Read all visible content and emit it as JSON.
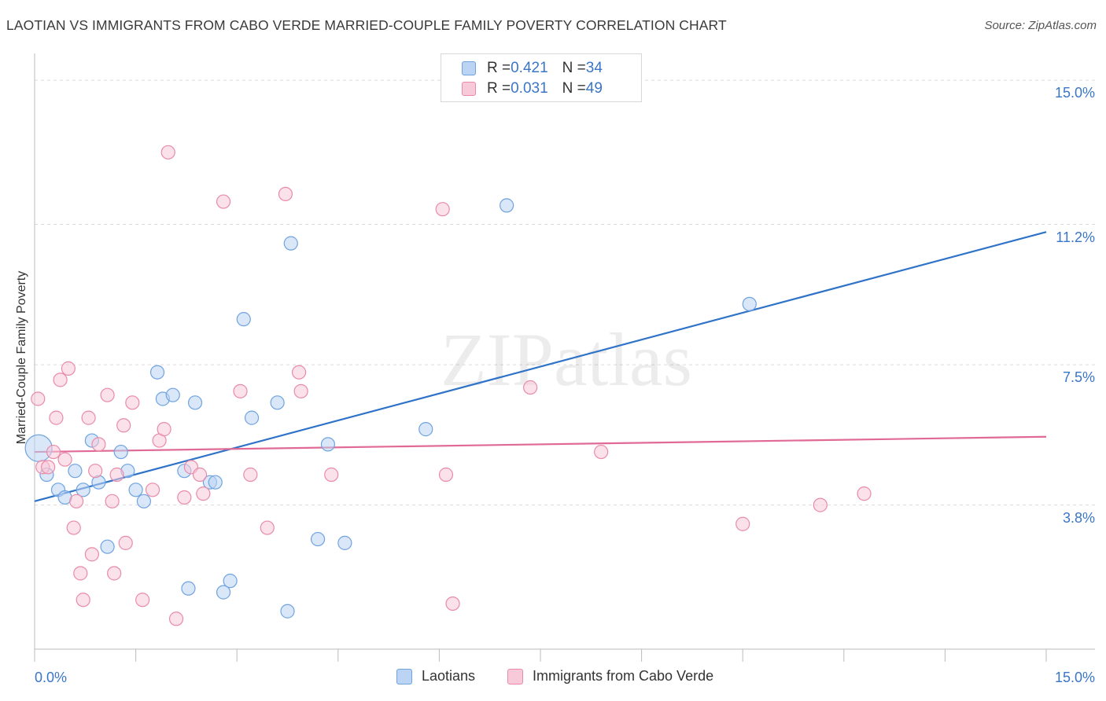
{
  "chart_data": {
    "type": "scatter",
    "title": "LAOTIAN VS IMMIGRANTS FROM CABO VERDE MARRIED-COUPLE FAMILY POVERTY CORRELATION CHART",
    "source": "Source: ZipAtlas.com",
    "xlabel": "",
    "ylabel": "Married-Couple Family Poverty",
    "xlim": [
      0,
      15
    ],
    "ylim": [
      0,
      15.5
    ],
    "x_tick_labels": [
      "0.0%",
      "15.0%"
    ],
    "y_ticks": [
      {
        "value": 3.8,
        "label": "3.8%"
      },
      {
        "value": 7.5,
        "label": "7.5%"
      },
      {
        "value": 11.2,
        "label": "11.2%"
      },
      {
        "value": 15.0,
        "label": "15.0%"
      }
    ],
    "watermark": "ZIPatlas",
    "legend": [
      {
        "name": "Laotians",
        "r_label": "R = ",
        "r": "0.421",
        "n_label": "N = ",
        "n": "34",
        "color": "#6fa3e0",
        "fill": "#bcd4f3"
      },
      {
        "name": "Immigrants from Cabo Verde",
        "r_label": "R = ",
        "r": "0.031",
        "n_label": "N = ",
        "n": "49",
        "color": "#e98ba8",
        "fill": "#f8c9d8"
      }
    ],
    "series": [
      {
        "name": "Laotians",
        "color": "#6fa3e0",
        "fill": "#bcd4f3",
        "trend": {
          "x0": 0,
          "y0": 3.9,
          "x1": 15,
          "y1": 11.0,
          "color": "#2f73c9"
        },
        "points": [
          {
            "x": 0.06,
            "y": 5.3,
            "big": true
          },
          {
            "x": 0.18,
            "y": 4.6
          },
          {
            "x": 0.35,
            "y": 4.2
          },
          {
            "x": 0.45,
            "y": 4.0
          },
          {
            "x": 0.6,
            "y": 4.7
          },
          {
            "x": 0.72,
            "y": 4.2
          },
          {
            "x": 0.85,
            "y": 5.5
          },
          {
            "x": 0.95,
            "y": 4.4
          },
          {
            "x": 1.08,
            "y": 2.7
          },
          {
            "x": 1.28,
            "y": 5.2
          },
          {
            "x": 1.38,
            "y": 4.7
          },
          {
            "x": 1.5,
            "y": 4.2
          },
          {
            "x": 1.62,
            "y": 3.9
          },
          {
            "x": 1.82,
            "y": 7.3
          },
          {
            "x": 1.9,
            "y": 6.6
          },
          {
            "x": 2.05,
            "y": 6.7
          },
          {
            "x": 2.22,
            "y": 4.7
          },
          {
            "x": 2.28,
            "y": 1.6
          },
          {
            "x": 2.38,
            "y": 6.5
          },
          {
            "x": 2.6,
            "y": 4.4
          },
          {
            "x": 2.68,
            "y": 4.4
          },
          {
            "x": 2.8,
            "y": 1.5
          },
          {
            "x": 2.9,
            "y": 1.8
          },
          {
            "x": 3.1,
            "y": 8.7
          },
          {
            "x": 3.22,
            "y": 6.1
          },
          {
            "x": 3.6,
            "y": 6.5
          },
          {
            "x": 3.75,
            "y": 1.0
          },
          {
            "x": 3.8,
            "y": 10.7
          },
          {
            "x": 4.2,
            "y": 2.9
          },
          {
            "x": 4.35,
            "y": 5.4
          },
          {
            "x": 4.6,
            "y": 2.8
          },
          {
            "x": 5.8,
            "y": 5.8
          },
          {
            "x": 7.0,
            "y": 11.7
          },
          {
            "x": 10.6,
            "y": 9.1
          }
        ]
      },
      {
        "name": "Immigrants from Cabo Verde",
        "color": "#e98ba8",
        "fill": "#f8c9d8",
        "trend": {
          "x0": 0,
          "y0": 5.2,
          "x1": 15,
          "y1": 5.6,
          "color": "#e06a95"
        },
        "points": [
          {
            "x": 0.05,
            "y": 6.6
          },
          {
            "x": 0.12,
            "y": 4.8
          },
          {
            "x": 0.2,
            "y": 4.8
          },
          {
            "x": 0.28,
            "y": 5.2
          },
          {
            "x": 0.32,
            "y": 6.1
          },
          {
            "x": 0.38,
            "y": 7.1
          },
          {
            "x": 0.45,
            "y": 5.0
          },
          {
            "x": 0.5,
            "y": 7.4
          },
          {
            "x": 0.58,
            "y": 3.2
          },
          {
            "x": 0.62,
            "y": 3.9
          },
          {
            "x": 0.68,
            "y": 2.0
          },
          {
            "x": 0.72,
            "y": 1.3
          },
          {
            "x": 0.8,
            "y": 6.1
          },
          {
            "x": 0.85,
            "y": 2.5
          },
          {
            "x": 0.9,
            "y": 4.7
          },
          {
            "x": 0.95,
            "y": 5.4
          },
          {
            "x": 1.08,
            "y": 6.7
          },
          {
            "x": 1.15,
            "y": 3.9
          },
          {
            "x": 1.18,
            "y": 2.0
          },
          {
            "x": 1.22,
            "y": 4.6
          },
          {
            "x": 1.32,
            "y": 5.9
          },
          {
            "x": 1.35,
            "y": 2.8
          },
          {
            "x": 1.45,
            "y": 6.5
          },
          {
            "x": 1.6,
            "y": 1.3
          },
          {
            "x": 1.75,
            "y": 4.2
          },
          {
            "x": 1.85,
            "y": 5.5
          },
          {
            "x": 1.92,
            "y": 5.8
          },
          {
            "x": 1.98,
            "y": 13.1
          },
          {
            "x": 2.1,
            "y": 0.8
          },
          {
            "x": 2.22,
            "y": 4.0
          },
          {
            "x": 2.32,
            "y": 4.8
          },
          {
            "x": 2.45,
            "y": 4.6
          },
          {
            "x": 2.5,
            "y": 4.1
          },
          {
            "x": 2.8,
            "y": 11.8
          },
          {
            "x": 3.05,
            "y": 6.8
          },
          {
            "x": 3.2,
            "y": 4.6
          },
          {
            "x": 3.45,
            "y": 3.2
          },
          {
            "x": 3.72,
            "y": 12.0
          },
          {
            "x": 3.92,
            "y": 7.3
          },
          {
            "x": 3.95,
            "y": 6.8
          },
          {
            "x": 4.4,
            "y": 4.6
          },
          {
            "x": 6.05,
            "y": 11.6
          },
          {
            "x": 6.1,
            "y": 4.6
          },
          {
            "x": 6.2,
            "y": 1.2
          },
          {
            "x": 7.35,
            "y": 6.9
          },
          {
            "x": 8.4,
            "y": 5.2
          },
          {
            "x": 10.5,
            "y": 3.3
          },
          {
            "x": 11.65,
            "y": 3.8
          },
          {
            "x": 12.3,
            "y": 4.1
          }
        ]
      }
    ]
  }
}
